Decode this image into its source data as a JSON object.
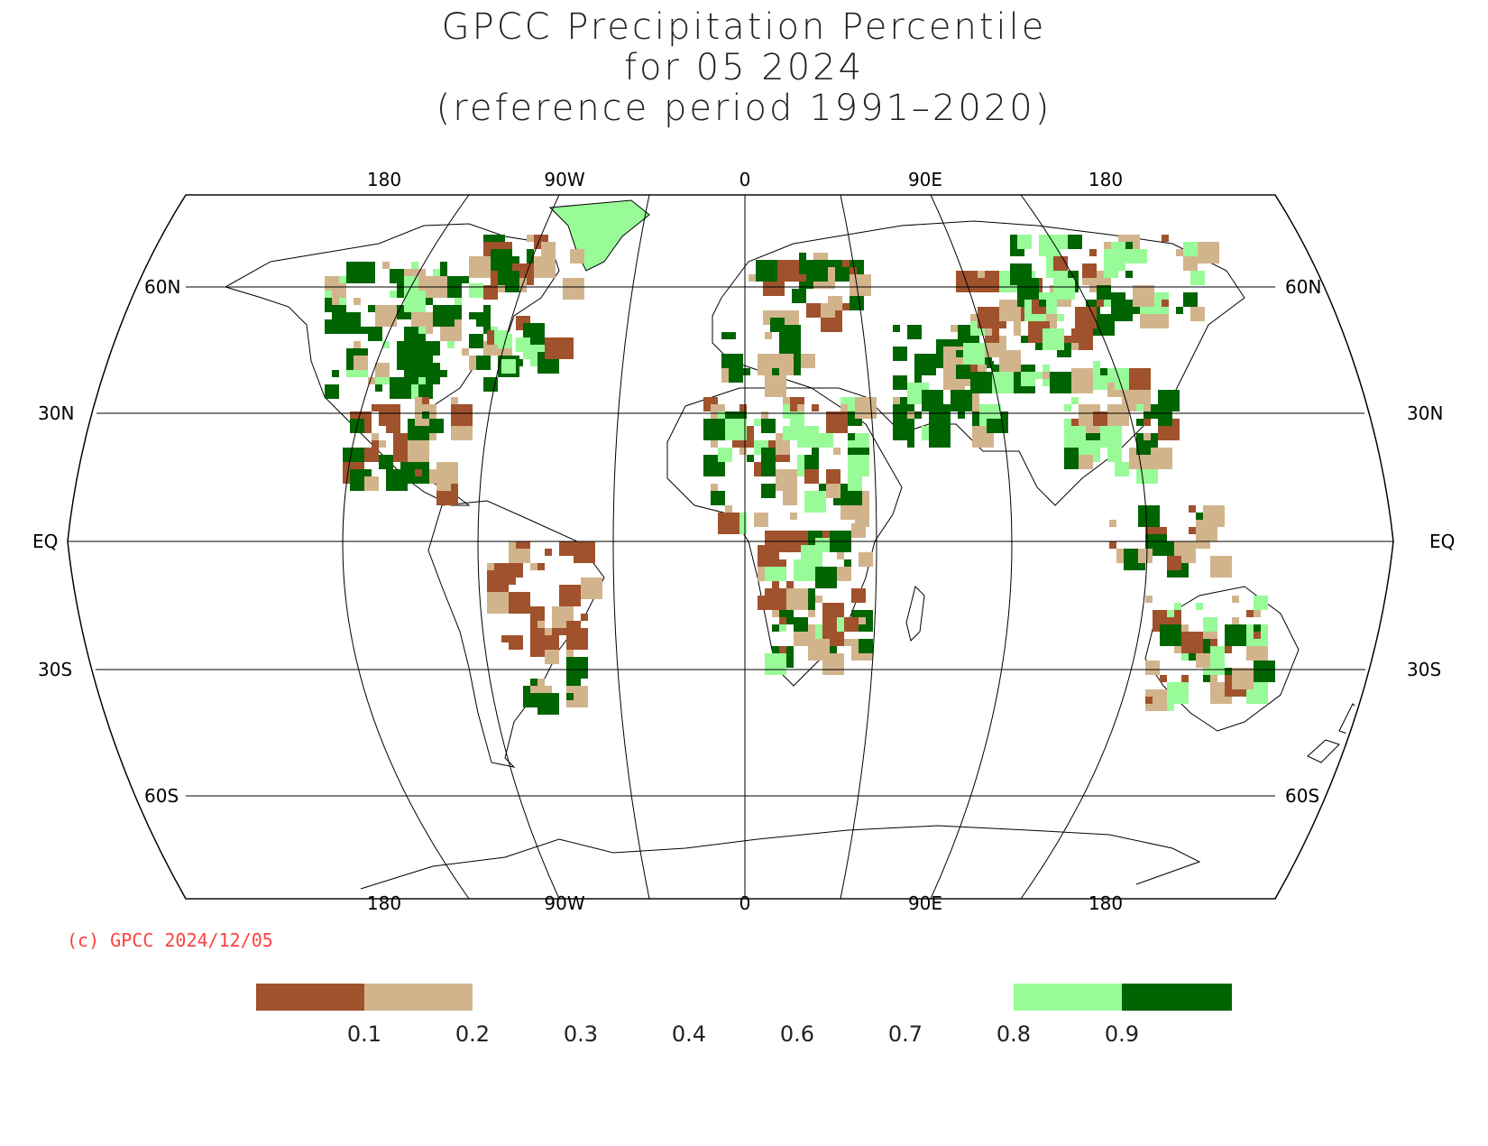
{
  "title": {
    "line1": "GPCC Precipitation Percentile",
    "line2": "for 05 2024",
    "line3": "(reference period 1991–2020)"
  },
  "axes": {
    "top_lon_labels": [
      "180",
      "90W",
      "0",
      "90E",
      "180"
    ],
    "bottom_lon_labels": [
      "180",
      "90W",
      "0",
      "90E",
      "180"
    ],
    "lat_labels": [
      "60N",
      "30N",
      "EQ",
      "30S",
      "60S"
    ]
  },
  "copyright": "(c) GPCC 2024/12/05",
  "legend": {
    "ticks": [
      "0.1",
      "0.2",
      "0.3",
      "0.4",
      "0.6",
      "0.7",
      "0.8",
      "0.9"
    ],
    "classes": [
      {
        "range": "< 0.1",
        "color": "#a0522d"
      },
      {
        "range": "0.1 - 0.2",
        "color": "#d2b48c"
      },
      {
        "range": "0.8 - 0.9",
        "color": "#98fb98"
      },
      {
        "range": "> 0.9",
        "color": "#006400"
      }
    ]
  },
  "colors": {
    "very_dry": "#a0522d",
    "dry": "#d2b48c",
    "wet": "#98fb98",
    "very_wet": "#006400",
    "copyright": "#ff4040"
  }
}
